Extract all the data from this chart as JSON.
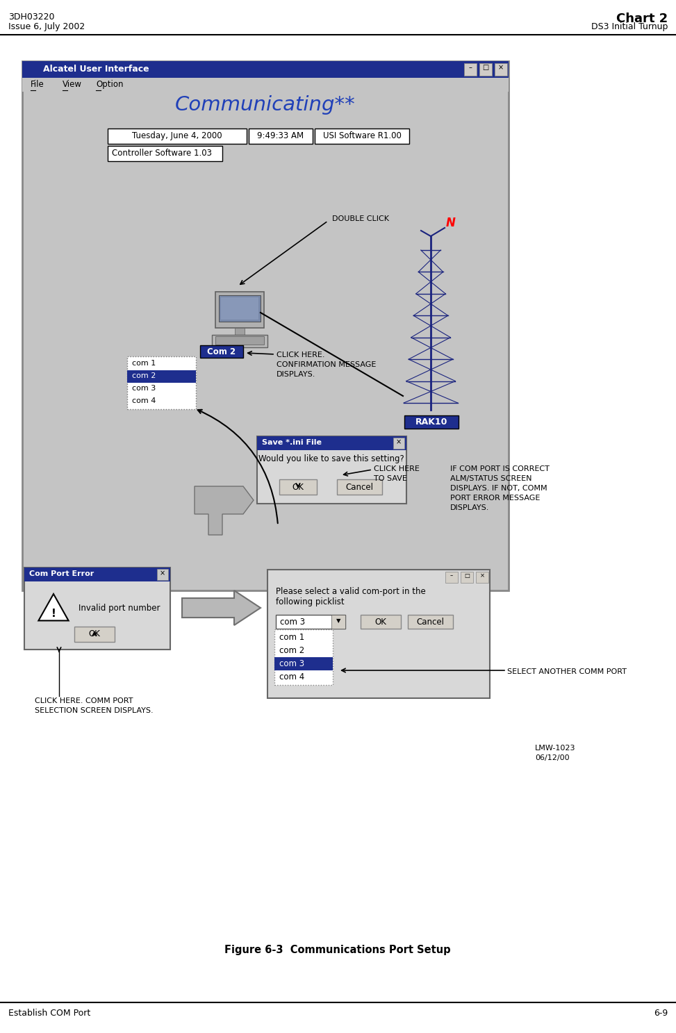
{
  "page_width": 9.73,
  "page_height": 14.87,
  "bg_color": "#ffffff",
  "header_left_line1": "3DH03220",
  "header_left_line2": "Issue 6, July 2002",
  "header_right_line1": "Chart 2",
  "header_right_line2": "DS3 Initial Turnup",
  "footer_left": "Establish COM Port",
  "footer_right": "6-9",
  "figure_caption": "Figure 6-3  Communications Port Setup",
  "main_window_title": "Alcatel User Interface",
  "menu_items": [
    "File",
    "View",
    "Option"
  ],
  "comm_status": "Communicating**",
  "date_text": "Tuesday, June 4, 2000",
  "time_text": "9:49:33 AM",
  "software_text": "USI Software R1.00",
  "controller_text": "Controller Software 1.03",
  "com2_label": "Com 2",
  "rak_label": "RAK10",
  "comlist1": [
    "com 1",
    "com 2",
    "com 3",
    "com 4"
  ],
  "comlist1_selected": 1,
  "save_dialog_title": "Save *.ini File",
  "save_dialog_text": "Would you like to save this setting?",
  "save_ok": "OK",
  "save_cancel": "Cancel",
  "error_title": "Com Port Error",
  "error_text": "Invalid port number",
  "error_ok": "OK",
  "comlist2_dropdown": "com 3",
  "comlist2_items": [
    "com 1",
    "com 2",
    "com 3",
    "com 4"
  ],
  "comlist2_selected_idx": 2,
  "comlist2_ok": "OK",
  "comlist2_cancel": "Cancel",
  "comlist2_prompt_line1": "Please select a valid com-port in the",
  "comlist2_prompt_line2": "following picklist",
  "ann1": "DOUBLE CLICK",
  "ann2_l1": "CLICK HERE.",
  "ann2_l2": "CONFIRMATION MESSAGE",
  "ann2_l3": "DISPLAYS.",
  "ann3_l1": "CLICK HERE",
  "ann3_l2": "TO SAVE",
  "ann4_l1": "IF COM PORT IS CORRECT",
  "ann4_l2": "ALM/STATUS SCREEN",
  "ann4_l3": "DISPLAYS. IF NOT, COMM",
  "ann4_l4": "PORT ERROR MESSAGE",
  "ann4_l5": "DISPLAYS.",
  "ann5_l1": "CLICK HERE. COMM PORT",
  "ann5_l2": "SELECTION SCREEN DISPLAYS.",
  "ann6": "SELECT ANOTHER COMM PORT",
  "lmw_l1": "LMW-1023",
  "lmw_l2": "06/12/00",
  "titlebar_color": "#1e2e8e",
  "win_bg": "#c4c4c4",
  "selected_bg": "#1e2e8e",
  "dlg_bg": "#d8d8d8",
  "comm_blue": "#2040b8"
}
